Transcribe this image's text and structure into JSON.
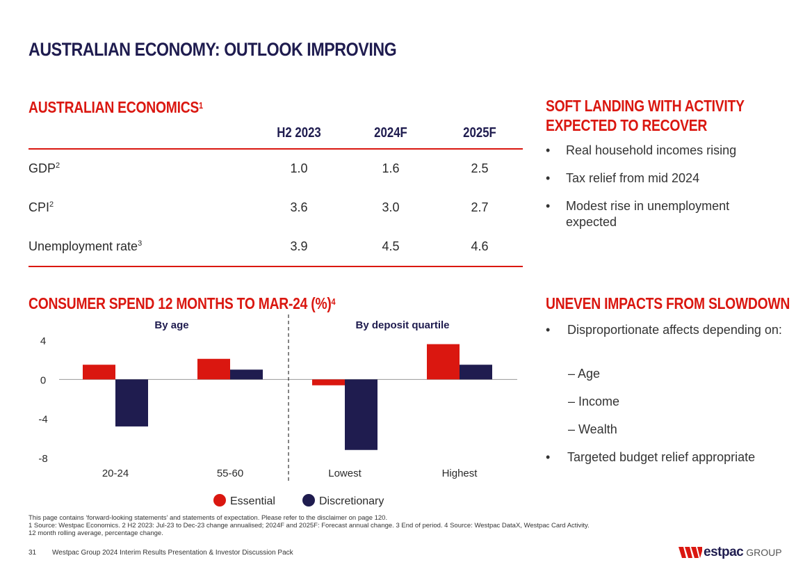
{
  "title": "AUSTRALIAN ECONOMY: OUTLOOK IMPROVING",
  "economics": {
    "heading": "AUSTRALIAN ECONOMICS",
    "heading_sup": "1",
    "columns": [
      "H2 2023",
      "2024F",
      "2025F"
    ],
    "rows": [
      {
        "label": "GDP",
        "sup": "2",
        "values": [
          "1.0",
          "1.6",
          "2.5"
        ]
      },
      {
        "label": "CPI",
        "sup": "2",
        "values": [
          "3.6",
          "3.0",
          "2.7"
        ]
      },
      {
        "label": "Unemployment rate",
        "sup": "3",
        "values": [
          "3.9",
          "4.5",
          "4.6"
        ]
      }
    ]
  },
  "soft_landing": {
    "heading_line1": "SOFT LANDING WITH ACTIVITY",
    "heading_line2": "EXPECTED TO RECOVER",
    "bullets": [
      "Real household incomes rising",
      "Tax relief from mid 2024",
      "Modest rise in unemployment expected"
    ]
  },
  "consumer": {
    "heading": "CONSUMER SPEND 12 MONTHS TO MAR-24 (%)",
    "heading_sup": "4"
  },
  "uneven": {
    "heading": "UNEVEN IMPACTS FROM SLOWDOWN",
    "bullet1": "Disproportionate affects depending on:",
    "subs": [
      "– Age",
      "– Income",
      "– Wealth"
    ],
    "bullet2": "Targeted budget relief appropriate"
  },
  "chart_data": {
    "type": "bar",
    "title": "CONSUMER SPEND 12 MONTHS TO MAR-24 (%)",
    "panels": [
      {
        "label": "By age",
        "categories": [
          "20-24",
          "55-60"
        ]
      },
      {
        "label": "By deposit quartile",
        "categories": [
          "Lowest",
          "Highest"
        ]
      }
    ],
    "categories": [
      "20-24",
      "55-60",
      "Lowest",
      "Highest"
    ],
    "series": [
      {
        "name": "Essential",
        "color": "#da1710",
        "values": [
          1.5,
          2.1,
          -0.6,
          3.6
        ]
      },
      {
        "name": "Discretionary",
        "color": "#1f1c4f",
        "values": [
          -4.8,
          1.0,
          -7.2,
          1.5
        ]
      }
    ],
    "yticks": [
      "4",
      "0",
      "-4",
      "-8"
    ],
    "ylim": [
      -8,
      4
    ],
    "xlabel": "",
    "ylabel": "",
    "grid": false,
    "legend": "bottom"
  },
  "disclaimer": {
    "line1": "This page contains ‘forward-looking statements’ and statements of expectation. Please refer to the disclaimer on page 120.",
    "line2": "1 Source: Westpac Economics. 2 H2 2023: Jul-23 to Dec-23 change annualised; 2024F and 2025F: Forecast annual change. 3 End of period. 4 Source: Westpac DataX, Westpac Card Activity.",
    "line3": "12 month rolling average, percentage change."
  },
  "footer": {
    "page": "31",
    "text": "Westpac Group 2024 Interim Results Presentation & Investor Discussion Pack",
    "logo_word": "estpac",
    "logo_group": "GROUP"
  }
}
